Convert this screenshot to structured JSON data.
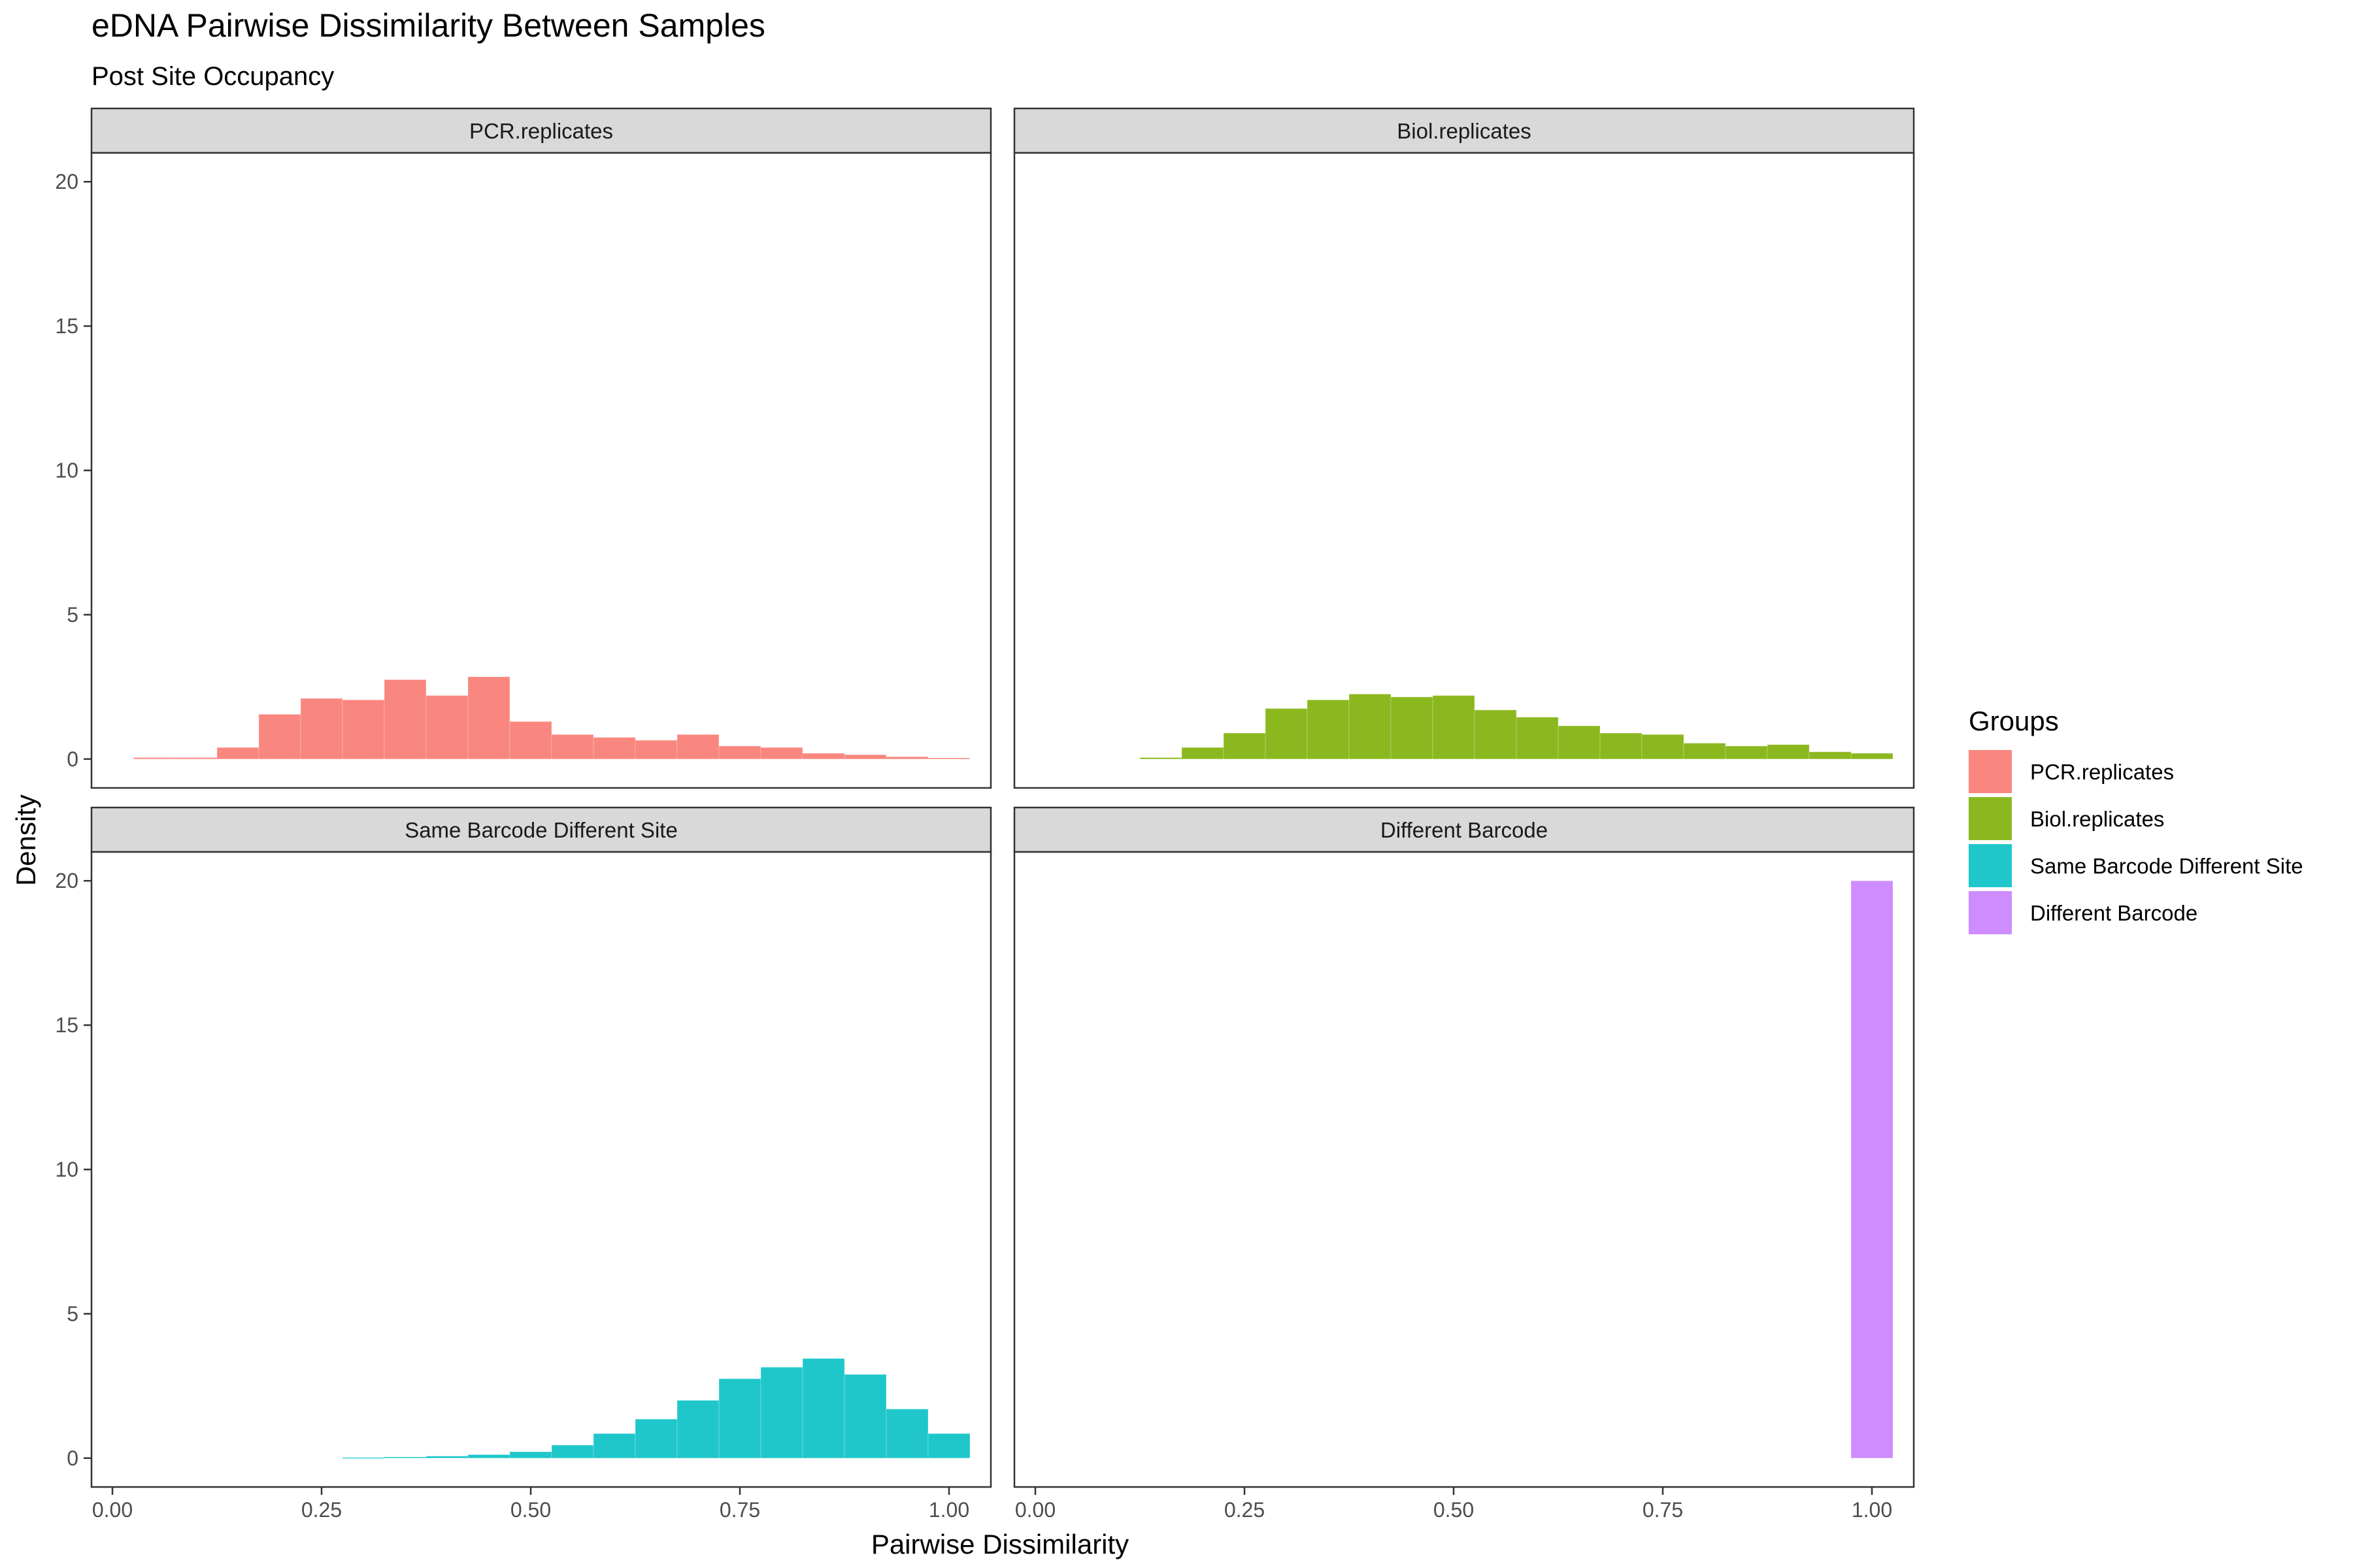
{
  "chart_data": {
    "type": "bar",
    "title": "eDNA Pairwise Dissimilarity Between Samples",
    "subtitle": "Post Site Occupancy",
    "xlabel": "Pairwise Dissimilarity",
    "ylabel": "Density",
    "xlim": [
      -0.025,
      1.05
    ],
    "ylim": [
      -1.0,
      21.0
    ],
    "x_ticks": [
      0.0,
      0.25,
      0.5,
      0.75,
      1.0
    ],
    "x_tick_labels": [
      "0.00",
      "0.25",
      "0.50",
      "0.75",
      "1.00"
    ],
    "y_ticks": [
      0,
      5,
      10,
      15,
      20
    ],
    "y_tick_labels": [
      "0",
      "5",
      "10",
      "15",
      "20"
    ],
    "bin_width": 0.05,
    "legend": {
      "title": "Groups",
      "position": "right"
    },
    "grid": false,
    "facets": [
      {
        "name": "PCR.replicates",
        "color": "#F8766D",
        "bins": [
          {
            "x": 0.05,
            "density": 0.05
          },
          {
            "x": 0.1,
            "density": 0.05
          },
          {
            "x": 0.15,
            "density": 0.4
          },
          {
            "x": 0.2,
            "density": 1.55
          },
          {
            "x": 0.25,
            "density": 2.1
          },
          {
            "x": 0.3,
            "density": 2.05
          },
          {
            "x": 0.35,
            "density": 2.75
          },
          {
            "x": 0.4,
            "density": 2.2
          },
          {
            "x": 0.45,
            "density": 2.85
          },
          {
            "x": 0.5,
            "density": 1.3
          },
          {
            "x": 0.55,
            "density": 0.85
          },
          {
            "x": 0.6,
            "density": 0.75
          },
          {
            "x": 0.65,
            "density": 0.65
          },
          {
            "x": 0.7,
            "density": 0.85
          },
          {
            "x": 0.75,
            "density": 0.45
          },
          {
            "x": 0.8,
            "density": 0.4
          },
          {
            "x": 0.85,
            "density": 0.2
          },
          {
            "x": 0.9,
            "density": 0.15
          },
          {
            "x": 0.95,
            "density": 0.08
          },
          {
            "x": 1.0,
            "density": 0.04
          }
        ]
      },
      {
        "name": "Biol.replicates",
        "color": "#7CAE00",
        "bins": [
          {
            "x": 0.15,
            "density": 0.05
          },
          {
            "x": 0.2,
            "density": 0.4
          },
          {
            "x": 0.25,
            "density": 0.9
          },
          {
            "x": 0.3,
            "density": 1.75
          },
          {
            "x": 0.35,
            "density": 2.05
          },
          {
            "x": 0.4,
            "density": 2.25
          },
          {
            "x": 0.45,
            "density": 2.15
          },
          {
            "x": 0.5,
            "density": 2.2
          },
          {
            "x": 0.55,
            "density": 1.7
          },
          {
            "x": 0.6,
            "density": 1.45
          },
          {
            "x": 0.65,
            "density": 1.15
          },
          {
            "x": 0.7,
            "density": 0.9
          },
          {
            "x": 0.75,
            "density": 0.85
          },
          {
            "x": 0.8,
            "density": 0.55
          },
          {
            "x": 0.85,
            "density": 0.45
          },
          {
            "x": 0.9,
            "density": 0.5
          },
          {
            "x": 0.95,
            "density": 0.25
          },
          {
            "x": 1.0,
            "density": 0.2
          }
        ]
      },
      {
        "name": "Same Barcode Different Site",
        "color": "#00BFC4",
        "bins": [
          {
            "x": 0.3,
            "density": 0.02
          },
          {
            "x": 0.35,
            "density": 0.04
          },
          {
            "x": 0.4,
            "density": 0.07
          },
          {
            "x": 0.45,
            "density": 0.12
          },
          {
            "x": 0.5,
            "density": 0.22
          },
          {
            "x": 0.55,
            "density": 0.45
          },
          {
            "x": 0.6,
            "density": 0.85
          },
          {
            "x": 0.65,
            "density": 1.35
          },
          {
            "x": 0.7,
            "density": 2.0
          },
          {
            "x": 0.75,
            "density": 2.75
          },
          {
            "x": 0.8,
            "density": 3.15
          },
          {
            "x": 0.85,
            "density": 3.45
          },
          {
            "x": 0.9,
            "density": 2.9
          },
          {
            "x": 0.95,
            "density": 1.7
          },
          {
            "x": 1.0,
            "density": 0.85
          }
        ]
      },
      {
        "name": "Different Barcode",
        "color": "#C77CFF",
        "bins": [
          {
            "x": 1.0,
            "density": 20.0
          }
        ]
      }
    ]
  }
}
